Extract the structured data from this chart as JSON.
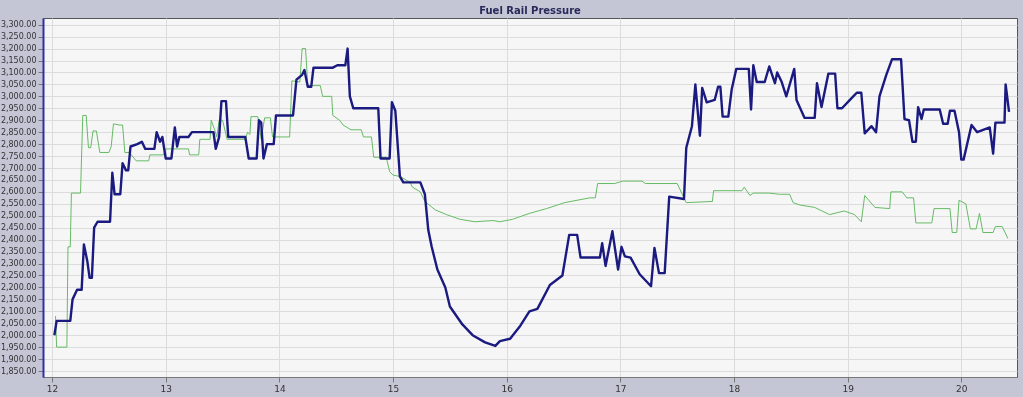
{
  "chart_data": {
    "type": "line",
    "title": "Fuel Rail Pressure",
    "xlim": [
      11.92,
      20.49
    ],
    "xticks": [
      12,
      13,
      14,
      15,
      16,
      17,
      18,
      19,
      20
    ],
    "ylim": [
      1825,
      3328
    ],
    "yticks": [
      {
        "value": 1850,
        "label": "1,850.00"
      },
      {
        "value": 1900,
        "label": "1,900.00"
      },
      {
        "value": 1950,
        "label": "1,950.00"
      },
      {
        "value": 2000,
        "label": "2,000.00"
      },
      {
        "value": 2050,
        "label": "2,050.00"
      },
      {
        "value": 2100,
        "label": "2,100.00"
      },
      {
        "value": 2150,
        "label": "2,150.00"
      },
      {
        "value": 2200,
        "label": "2,200.00"
      },
      {
        "value": 2250,
        "label": "2,250.00"
      },
      {
        "value": 2300,
        "label": "2,300.00"
      },
      {
        "value": 2350,
        "label": "2,350.00"
      },
      {
        "value": 2400,
        "label": "2,400.00"
      },
      {
        "value": 2450,
        "label": "2,450.00"
      },
      {
        "value": 2500,
        "label": "2,500.00"
      },
      {
        "value": 2550,
        "label": "2,550.00"
      },
      {
        "value": 2600,
        "label": "2,600.00"
      },
      {
        "value": 2650,
        "label": "2,650.00"
      },
      {
        "value": 2700,
        "label": "2,700.00"
      },
      {
        "value": 2750,
        "label": "2,750.00"
      },
      {
        "value": 2800,
        "label": "2,800.00"
      },
      {
        "value": 2850,
        "label": "2,850.00"
      },
      {
        "value": 2900,
        "label": "2,900.00"
      },
      {
        "value": 2950,
        "label": "2,950.00"
      },
      {
        "value": 3000,
        "label": "3,000.00"
      },
      {
        "value": 3050,
        "label": "3,050.00"
      },
      {
        "value": 3100,
        "label": "3,100.00"
      },
      {
        "value": 3150,
        "label": "3,150.00"
      },
      {
        "value": 3200,
        "label": "3,200.00"
      },
      {
        "value": 3250,
        "label": "3,250.00"
      },
      {
        "value": 3300,
        "label": "3,300.00"
      }
    ],
    "grid": true,
    "legend": false,
    "marker": "none",
    "line_style": "solid",
    "series": [
      {
        "color": "#66bb66",
        "x": [
          12.03,
          12.04,
          12.13,
          12.14,
          12.16,
          12.17,
          12.25,
          12.27,
          12.3,
          12.32,
          12.34,
          12.36,
          12.39,
          12.42,
          12.5,
          12.52,
          12.54,
          12.59,
          12.62,
          12.64,
          12.68,
          12.74,
          12.85,
          12.86,
          12.98,
          13.0,
          13.2,
          13.21,
          13.29,
          13.3,
          13.39,
          13.4,
          13.43,
          13.45,
          13.47,
          13.5,
          13.54,
          13.7,
          13.72,
          13.74,
          13.75,
          13.81,
          13.84,
          13.87,
          13.92,
          13.94,
          14.09,
          14.11,
          14.18,
          14.2,
          14.23,
          14.25,
          14.36,
          14.38,
          14.46,
          14.47,
          14.53,
          14.56,
          14.63,
          14.72,
          14.74,
          14.81,
          14.83,
          14.94,
          14.97,
          15.0,
          15.06,
          15.15,
          15.17,
          15.24,
          15.28,
          15.37,
          15.47,
          15.59,
          15.72,
          15.88,
          15.94,
          16.05,
          16.2,
          16.35,
          16.51,
          16.73,
          16.78,
          16.8,
          16.95,
          17.02,
          17.19,
          17.22,
          17.5,
          17.58,
          17.81,
          17.82,
          18.07,
          18.09,
          18.14,
          18.17,
          18.31,
          18.4,
          18.49,
          18.52,
          18.58,
          18.71,
          18.84,
          18.97,
          19.06,
          19.12,
          19.15,
          19.24,
          19.37,
          19.38,
          19.48,
          19.52,
          19.58,
          19.6,
          19.74,
          19.76,
          19.9,
          19.92,
          19.96,
          19.98,
          20.04,
          20.08,
          20.13,
          20.16,
          20.19,
          20.28,
          20.3,
          20.36,
          20.41
        ],
        "values": [
          2080,
          1950,
          1950,
          2370,
          2370,
          2595,
          2595,
          2920,
          2920,
          2785,
          2785,
          2855,
          2855,
          2765,
          2765,
          2790,
          2885,
          2880,
          2880,
          2765,
          2765,
          2730,
          2730,
          2755,
          2755,
          2780,
          2780,
          2755,
          2755,
          2820,
          2820,
          2900,
          2860,
          2830,
          2900,
          2900,
          2820,
          2820,
          2850,
          2840,
          2915,
          2915,
          2820,
          2910,
          2910,
          2830,
          2830,
          3065,
          3060,
          3200,
          3200,
          3045,
          3045,
          3000,
          3000,
          2920,
          2900,
          2880,
          2860,
          2860,
          2830,
          2830,
          2745,
          2745,
          2685,
          2670,
          2665,
          2640,
          2620,
          2600,
          2560,
          2525,
          2505,
          2485,
          2475,
          2480,
          2475,
          2485,
          2510,
          2530,
          2555,
          2575,
          2575,
          2635,
          2635,
          2645,
          2645,
          2635,
          2635,
          2555,
          2560,
          2605,
          2605,
          2620,
          2585,
          2595,
          2595,
          2590,
          2590,
          2555,
          2545,
          2535,
          2505,
          2520,
          2505,
          2475,
          2585,
          2535,
          2530,
          2600,
          2600,
          2575,
          2575,
          2470,
          2470,
          2530,
          2530,
          2430,
          2430,
          2565,
          2550,
          2445,
          2445,
          2510,
          2430,
          2430,
          2455,
          2455,
          2405
        ]
      },
      {
        "color": "#1a1a80",
        "x": [
          12.02,
          12.04,
          12.16,
          12.18,
          12.22,
          12.26,
          12.28,
          12.31,
          12.33,
          12.35,
          12.37,
          12.4,
          12.51,
          12.53,
          12.55,
          12.6,
          12.62,
          12.65,
          12.67,
          12.69,
          12.75,
          12.79,
          12.82,
          12.9,
          12.92,
          12.95,
          12.97,
          13.0,
          13.05,
          13.08,
          13.1,
          13.12,
          13.2,
          13.23,
          13.42,
          13.44,
          13.47,
          13.49,
          13.53,
          13.55,
          13.7,
          13.73,
          13.8,
          13.82,
          13.84,
          13.86,
          13.89,
          13.95,
          13.97,
          14.12,
          14.15,
          14.2,
          14.22,
          14.25,
          14.28,
          14.3,
          14.47,
          14.51,
          14.58,
          14.6,
          14.62,
          14.65,
          14.87,
          14.89,
          14.97,
          14.99,
          15.02,
          15.06,
          15.09,
          15.24,
          15.28,
          15.31,
          15.34,
          15.39,
          15.46,
          15.5,
          15.61,
          15.7,
          15.81,
          15.9,
          15.94,
          16.03,
          16.12,
          16.2,
          16.27,
          16.38,
          16.49,
          16.55,
          16.62,
          16.65,
          16.82,
          16.84,
          16.87,
          16.93,
          16.98,
          17.01,
          17.04,
          17.09,
          17.17,
          17.27,
          17.3,
          17.34,
          17.39,
          17.43,
          17.56,
          17.58,
          17.63,
          17.66,
          17.7,
          17.72,
          17.76,
          17.83,
          17.86,
          17.88,
          17.9,
          17.95,
          17.98,
          18.02,
          18.13,
          18.15,
          18.17,
          18.2,
          18.27,
          18.31,
          18.36,
          18.38,
          18.42,
          18.46,
          18.53,
          18.55,
          18.62,
          18.71,
          18.73,
          18.77,
          18.83,
          18.89,
          18.91,
          18.95,
          19.02,
          19.08,
          19.12,
          19.15,
          19.21,
          19.25,
          19.28,
          19.34,
          19.39,
          19.47,
          19.5,
          19.54,
          19.57,
          19.6,
          19.62,
          19.65,
          19.67,
          19.81,
          19.84,
          19.88,
          19.9,
          19.94,
          19.98,
          20.0,
          20.02,
          20.09,
          20.14,
          20.25,
          20.28,
          20.3,
          20.38,
          20.39,
          20.42
        ],
        "values": [
          2000,
          2060,
          2060,
          2150,
          2190,
          2190,
          2380,
          2310,
          2240,
          2240,
          2450,
          2475,
          2475,
          2680,
          2590,
          2590,
          2720,
          2690,
          2690,
          2790,
          2800,
          2810,
          2780,
          2780,
          2850,
          2810,
          2830,
          2740,
          2740,
          2870,
          2790,
          2830,
          2830,
          2850,
          2850,
          2780,
          2830,
          2980,
          2980,
          2830,
          2830,
          2740,
          2740,
          2900,
          2890,
          2740,
          2800,
          2800,
          2920,
          2920,
          3070,
          3090,
          3110,
          3040,
          3040,
          3120,
          3120,
          3130,
          3130,
          3200,
          3000,
          2950,
          2950,
          2740,
          2740,
          2975,
          2940,
          2665,
          2640,
          2640,
          2590,
          2440,
          2370,
          2275,
          2200,
          2120,
          2045,
          2000,
          1970,
          1955,
          1975,
          1985,
          2040,
          2100,
          2110,
          2210,
          2250,
          2420,
          2420,
          2325,
          2325,
          2385,
          2290,
          2435,
          2275,
          2370,
          2330,
          2325,
          2255,
          2205,
          2365,
          2260,
          2260,
          2580,
          2570,
          2785,
          2875,
          3050,
          2835,
          3035,
          2975,
          2985,
          3040,
          3040,
          2915,
          2915,
          3030,
          3115,
          3115,
          2945,
          3130,
          3060,
          3060,
          3125,
          3055,
          3100,
          3060,
          3000,
          3115,
          2985,
          2910,
          2910,
          3055,
          2955,
          3095,
          3095,
          2950,
          2950,
          2985,
          3015,
          3015,
          2845,
          2875,
          2850,
          3000,
          3090,
          3155,
          3155,
          2905,
          2900,
          2810,
          2810,
          2955,
          2905,
          2945,
          2945,
          2885,
          2885,
          2940,
          2940,
          2850,
          2735,
          2735,
          2880,
          2850,
          2870,
          2760,
          2890,
          2890,
          3050,
          2935
        ]
      }
    ]
  }
}
